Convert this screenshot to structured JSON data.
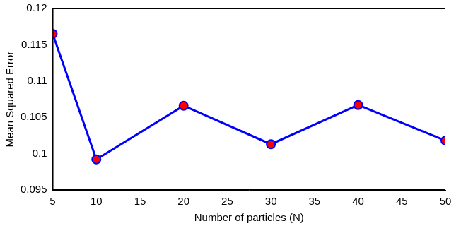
{
  "chart_data": {
    "type": "line",
    "x_label": "Number of particles (N)",
    "y_label": "Mean Squared Error",
    "x": [
      5,
      10,
      20,
      30,
      40,
      50
    ],
    "values": [
      0.1165,
      0.0992,
      0.1066,
      0.1013,
      0.1067,
      0.1018
    ],
    "color": "#0000ff",
    "marker": "circle",
    "xlim": [
      5,
      50
    ],
    "xticks": [
      5,
      10,
      15,
      20,
      25,
      30,
      35,
      40,
      45,
      50
    ],
    "ylim": [
      0.095,
      0.12
    ],
    "yticks": [
      0.095,
      0.1,
      0.105,
      0.11,
      0.115,
      0.12
    ],
    "grid": false
  }
}
